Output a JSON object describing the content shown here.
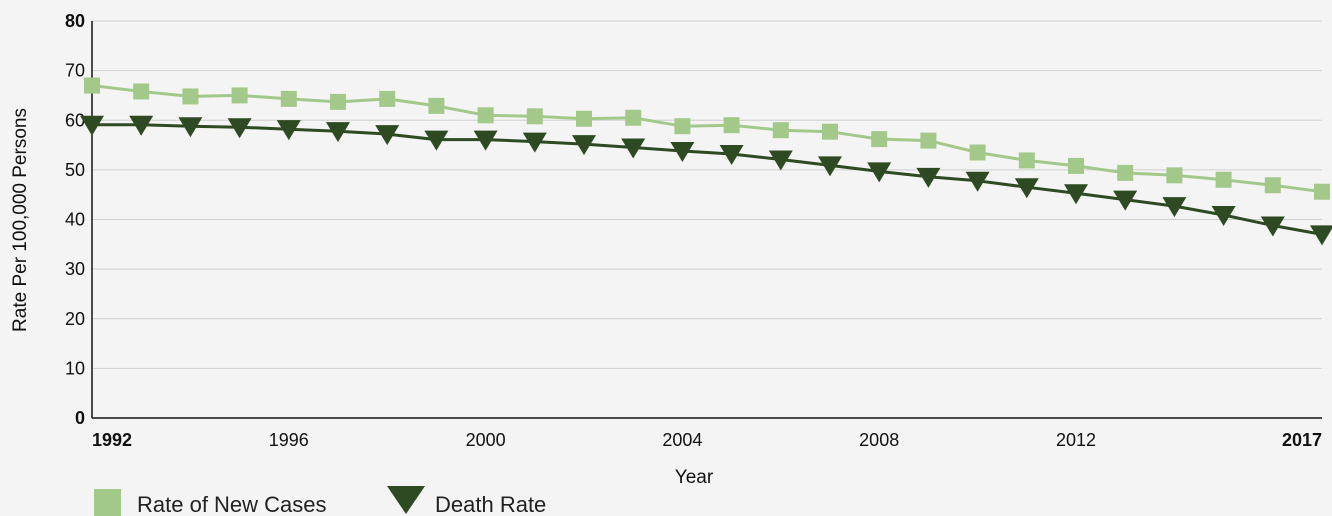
{
  "chart_data": {
    "type": "line",
    "title": "",
    "xlabel": "Year",
    "ylabel": "Rate Per 100,000 Persons",
    "xlim": [
      1992,
      2017
    ],
    "ylim": [
      0,
      80
    ],
    "x_ticks": [
      1992,
      1996,
      2000,
      2004,
      2008,
      2012,
      2017
    ],
    "x_ticks_bold": [
      1992,
      2017
    ],
    "y_ticks": [
      0,
      10,
      20,
      30,
      40,
      50,
      60,
      70,
      80
    ],
    "y_ticks_bold": [
      0,
      80
    ],
    "grid": true,
    "legend_position": "bottom-left",
    "x": [
      1992,
      1993,
      1994,
      1995,
      1996,
      1997,
      1998,
      1999,
      2000,
      2001,
      2002,
      2003,
      2004,
      2005,
      2006,
      2007,
      2008,
      2009,
      2010,
      2011,
      2012,
      2013,
      2014,
      2015,
      2016,
      2017
    ],
    "series": [
      {
        "name": "Rate of New Cases",
        "color": "#a3c98a",
        "marker": "square",
        "values": [
          67.0,
          65.8,
          64.8,
          65.0,
          64.3,
          63.7,
          64.3,
          62.9,
          61.0,
          60.8,
          60.3,
          60.5,
          58.8,
          59.0,
          58.0,
          57.7,
          56.2,
          55.9,
          53.5,
          51.9,
          50.8,
          49.4,
          48.9,
          48.0,
          46.9,
          45.6
        ]
      },
      {
        "name": "Death Rate",
        "color": "#2d4a22",
        "marker": "triangle-down",
        "values": [
          59.1,
          59.1,
          58.8,
          58.6,
          58.2,
          57.8,
          57.2,
          56.1,
          56.1,
          55.7,
          55.2,
          54.5,
          53.8,
          53.2,
          52.1,
          50.9,
          49.7,
          48.6,
          47.8,
          46.5,
          45.3,
          44.0,
          42.7,
          40.9,
          38.8,
          37.0
        ]
      }
    ]
  }
}
